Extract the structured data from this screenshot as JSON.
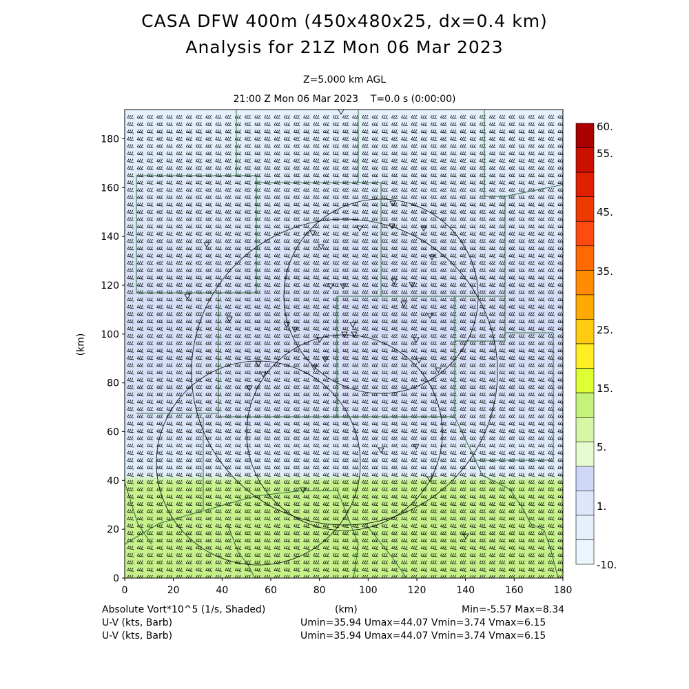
{
  "header": {
    "title_line1": "CASA DFW 400m (450x480x25, dx=0.4 km)",
    "title_line2": "Analysis for 21Z Mon 06 Mar 2023",
    "level": "Z=5.000 km AGL",
    "time": "21:00 Z Mon 06 Mar 2023    T=0.0 s (0:00:00)"
  },
  "axes": {
    "x_ticks": [
      "0",
      "20",
      "40",
      "60",
      "80",
      "100",
      "120",
      "140",
      "160",
      "180"
    ],
    "y_ticks": [
      "0",
      "20",
      "40",
      "60",
      "80",
      "100",
      "120",
      "140",
      "160",
      "180"
    ],
    "x_unit": "(km)",
    "y_unit": "(km)",
    "x_range": [
      0,
      180
    ],
    "y_range": [
      0,
      192
    ]
  },
  "colorbar": {
    "labels": [
      "60.",
      "55.",
      "45.",
      "35.",
      "25.",
      "15.",
      "5.",
      "1.",
      "-10."
    ],
    "colors": [
      "#aa0000",
      "#cc1100",
      "#e02000",
      "#ee3a00",
      "#ff4a10",
      "#ff6a00",
      "#ff8c00",
      "#ffaa00",
      "#ffcc11",
      "#ffee22",
      "#ddff33",
      "#c4f27a",
      "#d6f7a6",
      "#e6fbd0",
      "#d0d8f8",
      "#dde6fa",
      "#e6f0fb",
      "#eaf6fc"
    ]
  },
  "footer": {
    "field": "Absolute Vort*10^5 (1/s, Shaded)",
    "minmax": "Min=-5.57 Max=8.34",
    "uv1_label": "U-V (kts, Barb)",
    "uv1_stats": "Umin=35.94 Umax=44.07 Vmin=3.74 Vmax=6.15",
    "uv2_label": "U-V (kts, Barb)",
    "uv2_stats": "Umin=35.94 Umax=44.07 Vmin=3.74 Vmax=6.15"
  }
}
